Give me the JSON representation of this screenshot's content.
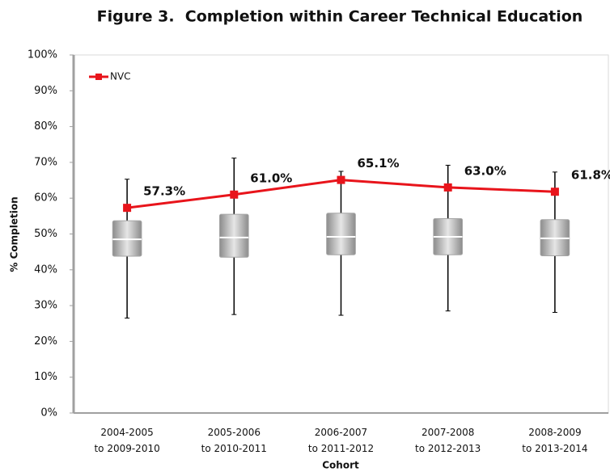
{
  "chart_data": {
    "type": "box",
    "title": "Figure 3.  Completion within Career Technical Education",
    "xlabel": "Cohort",
    "ylabel": "% Completion",
    "categories": [
      [
        "2004-2005",
        "to 2009-2010"
      ],
      [
        "2005-2006",
        "to 2010-2011"
      ],
      [
        "2006-2007",
        "to 2011-2012"
      ],
      [
        "2007-2008",
        "to 2012-2013"
      ],
      [
        "2008-2009",
        "to 2013-2014"
      ]
    ],
    "boxes": {
      "color": "#a6a6a6",
      "min": [
        26.5,
        27.5,
        27.3,
        28.5,
        28.1
      ],
      "q1": [
        43.8,
        43.5,
        44.2,
        44.2,
        43.9
      ],
      "median": [
        48.5,
        49.0,
        49.2,
        49.2,
        48.8
      ],
      "q3": [
        53.7,
        55.5,
        55.8,
        54.3,
        54.0
      ],
      "max": [
        65.3,
        71.2,
        67.5,
        69.2,
        67.3
      ]
    },
    "series": [
      {
        "name": "NVC",
        "type": "line",
        "color": "#e8141b",
        "values": [
          57.3,
          61.0,
          65.1,
          63.0,
          61.8
        ],
        "value_labels": [
          "57.3%",
          "61.0%",
          "65.1%",
          "63.0%",
          "61.8%"
        ]
      }
    ],
    "ylim": [
      0,
      100
    ],
    "yticks": [
      {
        "value": 0,
        "label": "0%"
      },
      {
        "value": 10,
        "label": "10%"
      },
      {
        "value": 20,
        "label": "20%"
      },
      {
        "value": 30,
        "label": "30%"
      },
      {
        "value": 40,
        "label": "40%"
      },
      {
        "value": 50,
        "label": "50%"
      },
      {
        "value": 60,
        "label": "60%"
      },
      {
        "value": 70,
        "label": "70%"
      },
      {
        "value": 80,
        "label": "80%"
      },
      {
        "value": 90,
        "label": "90%"
      },
      {
        "value": 100,
        "label": "100%"
      }
    ],
    "legend": "upper left"
  }
}
